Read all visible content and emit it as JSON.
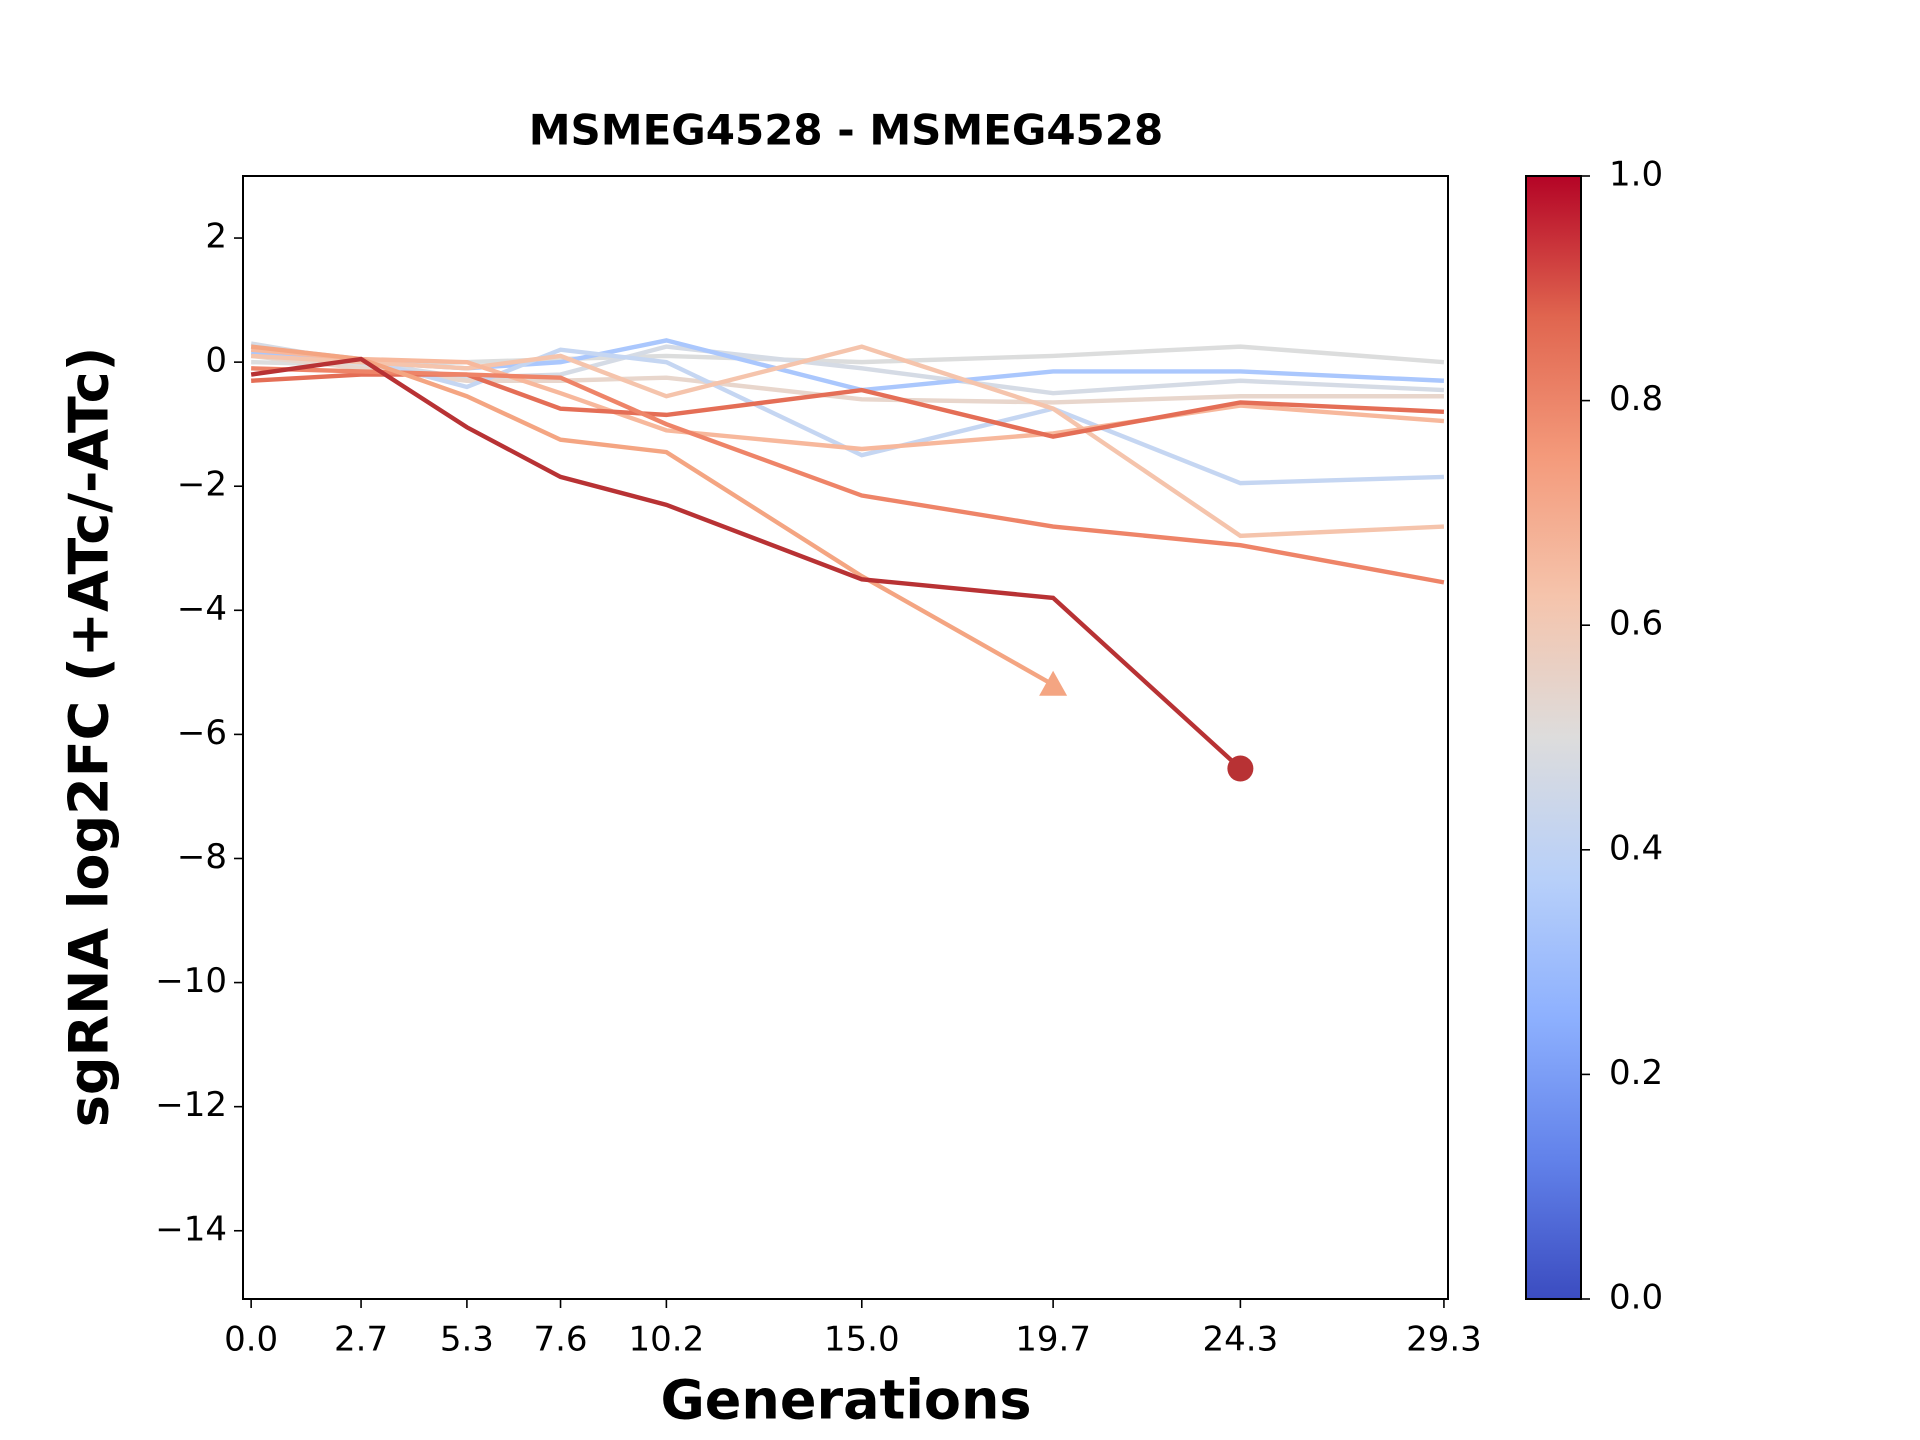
{
  "chart_data": {
    "type": "line",
    "title": "MSMEG4528 - MSMEG4528",
    "xlabel": "Generations",
    "ylabel": "sgRNA log2FC (+ATc/-ATc)",
    "x": [
      0,
      2.7,
      5.3,
      7.6,
      10.2,
      15.0,
      19.7,
      24.3,
      29.3
    ],
    "xlim": [
      -0.2,
      29.4
    ],
    "ylim": [
      -15.1,
      3
    ],
    "xticks": [
      {
        "value": 0,
        "label": "0.0"
      },
      2.7,
      5.3,
      7.6,
      10.2,
      {
        "value": 15,
        "label": "15.0"
      },
      19.7,
      24.3,
      29.3
    ],
    "yticks": [
      2,
      0,
      {
        "value": -2,
        "label": "−2"
      },
      {
        "value": -4,
        "label": "−4"
      },
      {
        "value": -6,
        "label": "−6"
      },
      {
        "value": -8,
        "label": "−8"
      },
      {
        "value": -10,
        "label": "−10"
      },
      {
        "value": -12,
        "label": "−12"
      },
      {
        "value": -14,
        "label": "−14"
      }
    ],
    "series": [
      {
        "color": "#dcdddd",
        "values": [
          0.0,
          -0.05,
          0.0,
          0.05,
          0.1,
          0.0,
          0.1,
          0.25,
          0.0
        ]
      },
      {
        "color": "#d5dbe5",
        "values": [
          0.3,
          0.0,
          -0.25,
          -0.2,
          0.25,
          -0.1,
          -0.5,
          -0.3,
          -0.45
        ]
      },
      {
        "color": "#e8d6cc",
        "values": [
          0.1,
          -0.1,
          -0.3,
          -0.3,
          -0.25,
          -0.6,
          -0.65,
          -0.55,
          -0.55
        ]
      },
      {
        "color": "#aac7fd",
        "values": [
          0.15,
          0.0,
          -0.1,
          0.0,
          0.35,
          -0.45,
          -0.15,
          -0.15,
          -0.3
        ]
      },
      {
        "color": "#c5d6f2",
        "values": [
          0.25,
          0.05,
          -0.4,
          0.2,
          0.0,
          -1.5,
          -0.75,
          -1.95,
          -1.85
        ]
      },
      {
        "color": "#f5c4ac",
        "values": [
          0.1,
          0.0,
          -0.1,
          0.1,
          -0.55,
          0.25,
          -0.75,
          -2.8,
          -2.65
        ]
      },
      {
        "color": "#f7b89c",
        "values": [
          0.2,
          0.05,
          0.0,
          -0.5,
          -1.1,
          -1.4,
          -1.15,
          -0.7,
          -0.95
        ]
      },
      {
        "color": "#e46e56",
        "values": [
          -0.3,
          -0.2,
          -0.2,
          -0.75,
          -0.85,
          -0.45,
          -1.2,
          -0.65,
          -0.8
        ]
      },
      {
        "color": "#ee8468",
        "values": [
          -0.1,
          -0.15,
          -0.2,
          -0.25,
          -1.0,
          -2.15,
          -2.65,
          -2.95,
          -3.55
        ]
      },
      {
        "color": "#f4a582",
        "marker": "triangle",
        "values": [
          0.25,
          0.05,
          -0.55,
          -1.25,
          -1.45,
          -3.45,
          -5.2,
          null,
          null
        ]
      },
      {
        "color": "#b83234",
        "marker": "circle",
        "values": [
          -0.2,
          0.05,
          -1.05,
          -1.85,
          -2.3,
          -3.5,
          -3.8,
          -6.55,
          null
        ]
      }
    ],
    "colorbar": {
      "lim": [
        0,
        1
      ],
      "ticks": [
        {
          "value": 0,
          "label": "0.0"
        },
        0.2,
        0.4,
        0.6,
        0.8,
        {
          "value": 1,
          "label": "1.0"
        }
      ],
      "colors": [
        "#3b4cc0",
        "#6282ea",
        "#8db0fe",
        "#b8d0f9",
        "#dddcdc",
        "#f5c4ac",
        "#f49a7b",
        "#e0654f",
        "#b40426"
      ]
    }
  }
}
